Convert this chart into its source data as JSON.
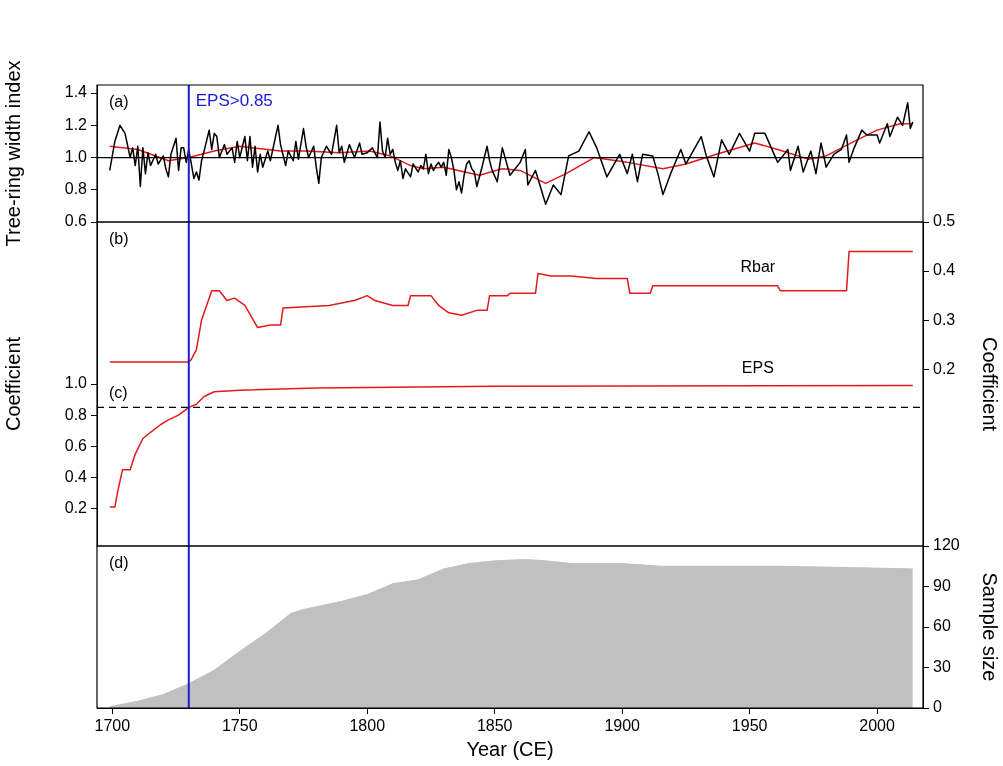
{
  "chart_data": [
    {
      "type": "line",
      "ylabel": "Tree-ring width index",
      "xlim": [
        1694,
        2018
      ],
      "ylim": [
        0.6,
        1.45
      ],
      "yticks": [
        0.6,
        0.8,
        {
          "value": 1,
          "label": "1.0"
        },
        1.2,
        1.4
      ],
      "tick_labels": "y",
      "marker": "none",
      "annotations": [
        "(a)"
      ],
      "ref_lines": [
        {
          "axis": "y",
          "value": 1,
          "color": "#000000"
        },
        {
          "axis": "x",
          "value": 1730,
          "label": "EPS>0.85",
          "color": "#1a1ad6"
        }
      ],
      "series": [
        {
          "color": "#000000",
          "x": [
            1699,
            1701,
            1703,
            1705,
            1707,
            1708,
            1709,
            1710,
            1711,
            1712,
            1713,
            1714,
            1715,
            1717,
            1718,
            1720,
            1721,
            1722,
            1723,
            1725,
            1726,
            1727,
            1728,
            1729,
            1730,
            1732,
            1733,
            1734,
            1735,
            1736,
            1738,
            1739,
            1740,
            1741,
            1742,
            1744,
            1745,
            1747,
            1748,
            1749,
            1750,
            1752,
            1753,
            1754,
            1755,
            1756,
            1757,
            1758,
            1759,
            1761,
            1762,
            1765,
            1766,
            1768,
            1769,
            1771,
            1772,
            1773,
            1775,
            1776,
            1777,
            1779,
            1780,
            1781,
            1782,
            1784,
            1786,
            1788,
            1789,
            1790,
            1791,
            1793,
            1795,
            1797,
            1798,
            1800,
            1802,
            1804,
            1805,
            1806,
            1807,
            1808,
            1809,
            1810,
            1811,
            1812,
            1813,
            1814,
            1815,
            1817,
            1818,
            1820,
            1821,
            1822,
            1823,
            1824,
            1825,
            1826,
            1827,
            1828,
            1829,
            1830,
            1831,
            1832,
            1833,
            1834,
            1835,
            1836,
            1837,
            1838,
            1839,
            1840,
            1841,
            1842,
            1843,
            1845,
            1847,
            1848,
            1849,
            1851,
            1853,
            1856,
            1860,
            1862,
            1863,
            1866,
            1870,
            1873,
            1876,
            1879,
            1883,
            1887,
            1890,
            1894,
            1899,
            1902,
            1904,
            1906,
            1908,
            1912,
            1914,
            1916,
            1919,
            1923,
            1925,
            1931,
            1933,
            1936,
            1939,
            1942,
            1946,
            1950,
            1952,
            1956,
            1961,
            1965,
            1966,
            1969,
            1971,
            1974,
            1976,
            1978,
            1980,
            1983,
            1986,
            1988,
            1989,
            1991,
            1994,
            1996,
            2000,
            2001,
            2004,
            2005,
            2008,
            2010,
            2012,
            2013,
            2014
          ],
          "values": [
            0.92,
            1.1,
            1.2,
            1.15,
            1.0,
            1.06,
            0.95,
            1.07,
            0.82,
            1.06,
            0.9,
            1.03,
            0.95,
            1.02,
            0.96,
            1.01,
            0.93,
            0.88,
            1.02,
            1.12,
            0.92,
            1.06,
            1.06,
            0.97,
            1.05,
            0.87,
            0.91,
            0.86,
            0.98,
            1.04,
            1.17,
            1.05,
            1.15,
            1.13,
            1.0,
            1.08,
            1.02,
            1.06,
            0.97,
            1.1,
            1.0,
            1.13,
            0.98,
            1.13,
            0.94,
            1.07,
            0.91,
            1.02,
            0.94,
            1.04,
            0.98,
            1.2,
            1.08,
            0.95,
            1.04,
            0.98,
            1.1,
            0.99,
            1.18,
            1.07,
            1.0,
            1.07,
            0.94,
            0.84,
            1.0,
            1.07,
            1.02,
            1.2,
            1.03,
            1.07,
            0.97,
            1.08,
            1.0,
            1.09,
            1.02,
            1.03,
            1.06,
            1.0,
            1.22,
            1.04,
            1.0,
            1.12,
            1.02,
            1.05,
            0.97,
            0.92,
            0.98,
            0.87,
            0.93,
            0.88,
            0.96,
            0.91,
            0.95,
            0.93,
            1.02,
            0.9,
            0.96,
            0.92,
            0.95,
            0.97,
            0.94,
            0.97,
            0.89,
            1.05,
            1.0,
            0.92,
            0.8,
            0.85,
            0.78,
            0.89,
            0.96,
            0.98,
            0.93,
            0.91,
            0.82,
            0.94,
            1.07,
            0.98,
            0.92,
            0.85,
            1.06,
            0.89,
            0.97,
            1.05,
            0.83,
            0.92,
            0.71,
            0.83,
            0.77,
            1.01,
            1.04,
            1.16,
            1.06,
            0.88,
            1.02,
            0.9,
            1.02,
            0.85,
            1.02,
            1.01,
            0.9,
            0.77,
            0.9,
            1.05,
            0.96,
            1.13,
            1.01,
            0.88,
            1.11,
            1.02,
            1.15,
            1.04,
            1.15,
            1.15,
            0.97,
            1.05,
            0.92,
            1.07,
            0.91,
            1.04,
            0.9,
            1.09,
            0.94,
            1.02,
            1.05,
            1.14,
            0.97,
            1.06,
            1.17,
            1.14,
            1.14,
            1.09,
            1.21,
            1.13,
            1.25,
            1.2,
            1.34,
            1.18,
            1.22
          ]
        },
        {
          "color": "#e3191c",
          "x": [
            1699,
            1710,
            1722,
            1730,
            1740,
            1750,
            1766,
            1776,
            1789,
            1801,
            1809,
            1817,
            1822,
            1830,
            1844,
            1853,
            1860,
            1870,
            1878,
            1889,
            1902,
            1916,
            1925,
            1937,
            1952,
            1961,
            1973,
            1980,
            1991,
            2000,
            2009,
            2014
          ],
          "values": [
            1.07,
            1.05,
            0.98,
            1.0,
            1.04,
            1.07,
            1.04,
            1.04,
            1.03,
            1.04,
            1.01,
            0.95,
            0.93,
            0.94,
            0.89,
            0.93,
            0.92,
            0.84,
            0.9,
            1.0,
            0.97,
            0.93,
            0.96,
            1.02,
            1.09,
            1.05,
            0.99,
            1.01,
            1.1,
            1.17,
            1.21,
            1.21
          ]
        }
      ]
    },
    {
      "type": "line",
      "ylabel": "Coefficient",
      "y2label": "Coefficient",
      "xlim": [
        1694,
        2018
      ],
      "ylim": [
        -0.04,
        2.04
      ],
      "yticks": [
        0.2,
        0.4,
        0.6,
        0.8,
        {
          "value": 1,
          "label": "1.0"
        }
      ],
      "y2lim": [
        -0.16,
        0.5
      ],
      "y2ticks": [
        0.2,
        0.3,
        0.4,
        0.5
      ],
      "tick_labels": "y",
      "marker": "none",
      "annotations": [
        "(b)",
        "(c)"
      ],
      "ref_lines": [
        {
          "axis": "y",
          "value": 0.85,
          "color": "#000000",
          "line_style": "dashed"
        },
        {
          "axis": "x",
          "value": 1730,
          "color": "#1a1ad6"
        }
      ],
      "series": [
        {
          "name": "Rbar",
          "axis": "y2",
          "color": "#e3191c",
          "x": [
            1699,
            1730,
            1731,
            1733,
            1735,
            1737,
            1739,
            1742,
            1745,
            1748,
            1752,
            1757,
            1762,
            1766,
            1767,
            1785,
            1795,
            1800,
            1803,
            1810,
            1816,
            1817,
            1825,
            1828,
            1832,
            1837,
            1843,
            1847,
            1848,
            1855,
            1856,
            1866,
            1867,
            1872,
            1880,
            1890,
            1902,
            1903,
            1911,
            1912,
            1961,
            1962,
            1988,
            1989,
            2014
          ],
          "values": [
            0.215,
            0.215,
            0.22,
            0.24,
            0.3,
            0.33,
            0.36,
            0.36,
            0.34,
            0.345,
            0.33,
            0.285,
            0.29,
            0.29,
            0.325,
            0.33,
            0.34,
            0.35,
            0.34,
            0.33,
            0.33,
            0.35,
            0.35,
            0.33,
            0.315,
            0.31,
            0.32,
            0.32,
            0.35,
            0.35,
            0.355,
            0.355,
            0.395,
            0.39,
            0.39,
            0.385,
            0.385,
            0.355,
            0.355,
            0.37,
            0.37,
            0.36,
            0.36,
            0.44,
            0.44
          ]
        },
        {
          "name": "EPS",
          "color": "#e3191c",
          "x": [
            1699,
            1701,
            1702,
            1704,
            1707,
            1709,
            1712,
            1715,
            1719,
            1722,
            1726,
            1730,
            1733,
            1736,
            1740,
            1750,
            1780,
            1850,
            2014
          ],
          "values": [
            0.21,
            0.21,
            0.3,
            0.45,
            0.45,
            0.55,
            0.65,
            0.69,
            0.74,
            0.77,
            0.8,
            0.85,
            0.87,
            0.92,
            0.95,
            0.96,
            0.975,
            0.985,
            0.99
          ]
        }
      ]
    },
    {
      "type": "area",
      "xlabel": "Year (CE)",
      "y2label": "Sample size",
      "xlim": [
        1694,
        2018
      ],
      "xticks": [
        1700,
        1750,
        1800,
        1850,
        1900,
        1950,
        2000
      ],
      "y2lim": [
        0,
        120
      ],
      "y2ticks": [
        0,
        30,
        60,
        90,
        120
      ],
      "marker": "none",
      "annotations": [
        "(d)"
      ],
      "ref_lines": [
        {
          "axis": "x",
          "value": 1730,
          "color": "#1a1ad6"
        }
      ],
      "series": [
        {
          "axis": "y2",
          "color": "#c0c0c0",
          "x": [
            1699,
            1710,
            1720,
            1730,
            1740,
            1750,
            1760,
            1770,
            1775,
            1790,
            1800,
            1810,
            1820,
            1830,
            1840,
            1850,
            1862,
            1870,
            1880,
            1900,
            1915,
            1960,
            1990,
            2014
          ],
          "values": [
            1,
            5,
            10,
            18,
            28,
            42,
            55,
            70,
            73,
            79,
            84,
            92,
            95,
            103,
            107,
            109,
            110,
            109,
            107,
            107,
            105,
            105,
            104,
            103
          ]
        }
      ]
    }
  ]
}
